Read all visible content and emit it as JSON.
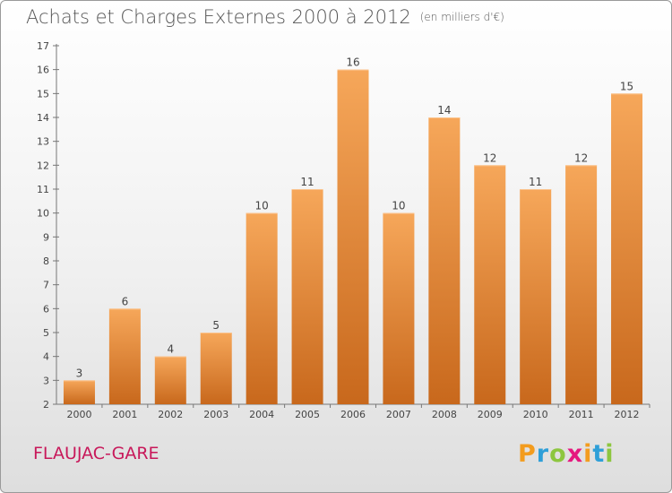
{
  "title": "Achats et Charges Externes 2000 à 2012",
  "unit": "(en milliers d'€)",
  "commune": "FLAUJAC-GARE",
  "logo": {
    "text": "Proxiti",
    "letters": [
      "P",
      "r",
      "o",
      "x",
      "i",
      "t",
      "i"
    ],
    "colors": [
      "#f39c1e",
      "#2e9fd8",
      "#8dc63f",
      "#e5187e",
      "#f39c1e",
      "#2e9fd8",
      "#8dc63f"
    ]
  },
  "colors": {
    "bar_light": "#f6a75a",
    "bar_dark": "#c8681c",
    "axis": "#777777",
    "label": "#444444"
  },
  "chart_data": {
    "type": "bar",
    "title": "Achats et Charges Externes 2000 à 2012",
    "categories": [
      "2000",
      "2001",
      "2002",
      "2003",
      "2004",
      "2005",
      "2006",
      "2007",
      "2008",
      "2009",
      "2010",
      "2011",
      "2012"
    ],
    "values": [
      3,
      6,
      4,
      5,
      10,
      11,
      16,
      10,
      14,
      12,
      11,
      12,
      15
    ],
    "ylim": [
      2,
      17
    ],
    "yticks": [
      2,
      3,
      4,
      5,
      6,
      7,
      8,
      9,
      10,
      11,
      12,
      13,
      14,
      15,
      16,
      17
    ],
    "grid": false,
    "data_labels": true
  }
}
